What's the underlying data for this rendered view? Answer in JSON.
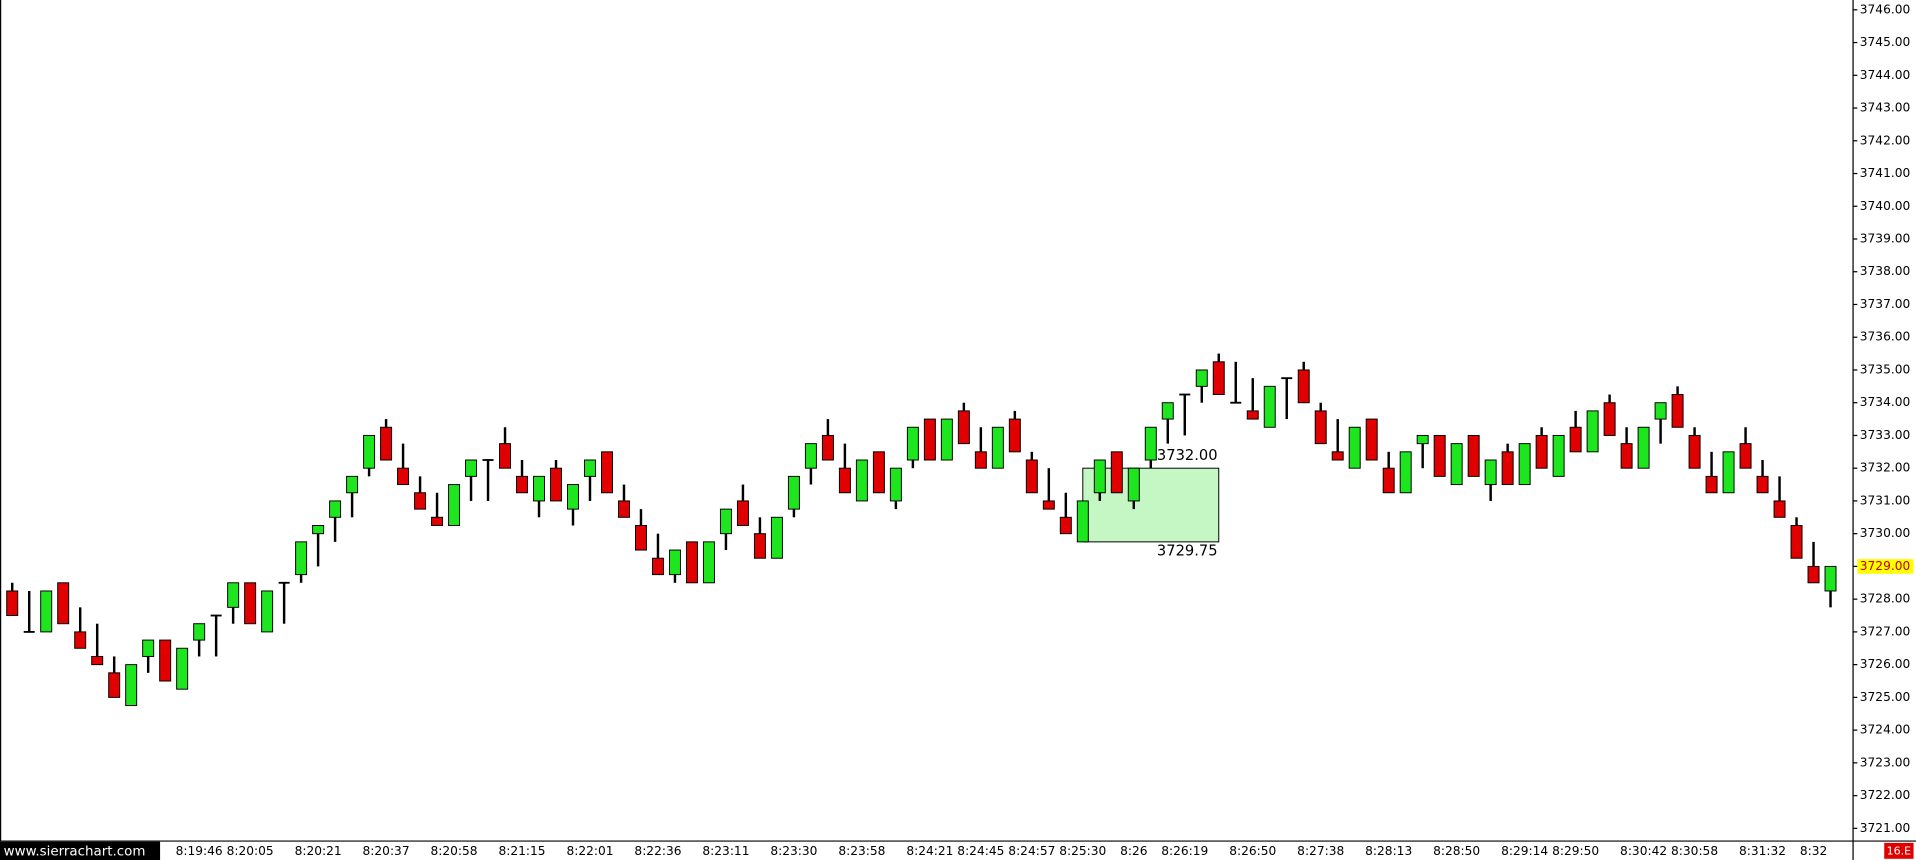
{
  "chart_data": {
    "type": "candlestick",
    "up_color": "#1ee61e",
    "down_color": "#e00000",
    "ylim": [
      3720.63,
      3746.3
    ],
    "yticks": [
      {
        "value": 3721,
        "label": "3721.00"
      },
      {
        "value": 3722,
        "label": "3722.00"
      },
      {
        "value": 3723,
        "label": "3723.00"
      },
      {
        "value": 3724,
        "label": "3724.00"
      },
      {
        "value": 3725,
        "label": "3725.00"
      },
      {
        "value": 3726,
        "label": "3726.00"
      },
      {
        "value": 3727,
        "label": "3727.00"
      },
      {
        "value": 3728,
        "label": "3728.00"
      },
      {
        "value": 3729,
        "label": "3729.00"
      },
      {
        "value": 3730,
        "label": "3730.00"
      },
      {
        "value": 3731,
        "label": "3731.00"
      },
      {
        "value": 3732,
        "label": "3732.00"
      },
      {
        "value": 3733,
        "label": "3733.00"
      },
      {
        "value": 3734,
        "label": "3734.00"
      },
      {
        "value": 3735,
        "label": "3735.00"
      },
      {
        "value": 3736,
        "label": "3736.00"
      },
      {
        "value": 3737,
        "label": "3737.00"
      },
      {
        "value": 3738,
        "label": "3738.00"
      },
      {
        "value": 3739,
        "label": "3739.00"
      },
      {
        "value": 3740,
        "label": "3740.00"
      },
      {
        "value": 3741,
        "label": "3741.00"
      },
      {
        "value": 3742,
        "label": "3742.00"
      },
      {
        "value": 3743,
        "label": "3743.00"
      },
      {
        "value": 3744,
        "label": "3744.00"
      },
      {
        "value": 3745,
        "label": "3745.00"
      },
      {
        "value": 3746,
        "label": "3746.00"
      }
    ],
    "categories": [
      null,
      null,
      null,
      null,
      null,
      null,
      null,
      null,
      null,
      null,
      null,
      "8:19:46",
      null,
      null,
      "8:20:05",
      null,
      null,
      null,
      "8:20:21",
      null,
      null,
      null,
      "8:20:37",
      null,
      null,
      null,
      "8:20:58",
      null,
      null,
      null,
      "8:21:15",
      null,
      null,
      null,
      "8:22:01",
      null,
      null,
      null,
      "8:22:36",
      null,
      null,
      null,
      "8:23:11",
      null,
      null,
      null,
      "8:23:30",
      null,
      null,
      null,
      "8:23:58",
      null,
      null,
      null,
      "8:24:21",
      null,
      null,
      "8:24:45",
      null,
      null,
      "8:24:57",
      null,
      null,
      "8:25:30",
      null,
      null,
      "8:26",
      null,
      null,
      "8:26:19",
      null,
      null,
      null,
      "8:26:50",
      null,
      null,
      null,
      "8:27:38",
      null,
      null,
      null,
      "8:28:13",
      null,
      null,
      null,
      "8:28:50",
      null,
      null,
      null,
      "8:29:14",
      null,
      null,
      "8:29:50",
      null,
      null,
      null,
      "8:30:42",
      null,
      null,
      "8:30:58",
      null,
      null,
      null,
      "8:31:32",
      null,
      null,
      "8:32",
      null
    ],
    "open": [
      3728.25,
      3727.0,
      3727.0,
      3728.5,
      3727.0,
      3726.25,
      3725.75,
      3724.75,
      3726.25,
      3726.75,
      3725.25,
      3726.75,
      3727.5,
      3727.75,
      3728.5,
      3727.0,
      3728.5,
      3728.75,
      3730.0,
      3730.5,
      3731.25,
      3732.0,
      3733.25,
      3732.0,
      3731.25,
      3730.5,
      3730.25,
      3731.75,
      3732.25,
      3732.75,
      3731.75,
      3731.0,
      3732.0,
      3730.75,
      3731.75,
      3732.5,
      3731.0,
      3730.25,
      3729.25,
      3728.75,
      3729.75,
      3728.5,
      3730.0,
      3731.0,
      3730.0,
      3729.25,
      3730.75,
      3732.0,
      3733.0,
      3732.0,
      3731.0,
      3732.5,
      3731.0,
      3732.25,
      3733.5,
      3732.25,
      3733.75,
      3732.5,
      3732.0,
      3733.5,
      3732.25,
      3731.0,
      3730.5,
      3729.75,
      3731.25,
      3732.5,
      3731.0,
      3732.25,
      3733.5,
      3734.25,
      3734.5,
      3735.25,
      3734.0,
      3733.75,
      3733.25,
      3734.75,
      3735.0,
      3733.75,
      3732.5,
      3732.0,
      3733.5,
      3732.0,
      3731.25,
      3732.75,
      3733.0,
      3731.5,
      3733.0,
      3731.5,
      3732.5,
      3731.5,
      3733.0,
      3731.75,
      3733.25,
      3732.5,
      3734.0,
      3732.75,
      3732.0,
      3733.5,
      3734.25,
      3733.0,
      3731.75,
      3731.25,
      3732.75,
      3731.75,
      3731.0,
      3730.25,
      3729.0,
      3728.25
    ],
    "high": [
      3728.5,
      3728.25,
      3728.25,
      3728.5,
      3727.75,
      3727.25,
      3726.25,
      3726.0,
      3726.75,
      3726.75,
      3726.5,
      3727.25,
      3727.5,
      3728.5,
      3728.5,
      3728.25,
      3728.5,
      3729.75,
      3730.25,
      3731.0,
      3731.75,
      3733.0,
      3733.5,
      3732.75,
      3731.75,
      3731.25,
      3731.5,
      3732.25,
      3732.25,
      3733.25,
      3732.25,
      3731.75,
      3732.25,
      3731.5,
      3732.25,
      3732.5,
      3731.5,
      3730.75,
      3730.0,
      3729.5,
      3729.75,
      3729.75,
      3730.75,
      3731.5,
      3730.5,
      3730.5,
      3731.75,
      3732.75,
      3733.5,
      3732.75,
      3732.25,
      3732.5,
      3732.0,
      3733.25,
      3733.5,
      3733.5,
      3734.0,
      3733.25,
      3733.25,
      3733.75,
      3732.5,
      3732.0,
      3731.25,
      3731.0,
      3732.25,
      3732.5,
      3732.0,
      3733.25,
      3734.0,
      3734.25,
      3735.0,
      3735.5,
      3735.25,
      3734.75,
      3734.5,
      3734.75,
      3735.25,
      3734.0,
      3733.5,
      3733.25,
      3733.5,
      3732.5,
      3732.5,
      3733.0,
      3733.0,
      3732.75,
      3733.0,
      3732.25,
      3732.75,
      3732.75,
      3733.25,
      3733.0,
      3733.75,
      3733.75,
      3734.25,
      3733.25,
      3733.25,
      3734.0,
      3734.5,
      3733.25,
      3732.5,
      3732.5,
      3733.25,
      3732.25,
      3731.75,
      3730.5,
      3729.75,
      3729.0
    ],
    "low": [
      3727.5,
      3727.0,
      3727.0,
      3727.25,
      3726.5,
      3726.0,
      3725.0,
      3724.75,
      3725.75,
      3725.5,
      3725.25,
      3726.25,
      3726.25,
      3727.25,
      3727.25,
      3727.0,
      3727.25,
      3728.5,
      3729.0,
      3729.75,
      3730.5,
      3731.75,
      3732.25,
      3731.5,
      3730.75,
      3730.25,
      3730.25,
      3731.0,
      3731.0,
      3732.0,
      3731.25,
      3730.5,
      3731.0,
      3730.25,
      3731.0,
      3731.25,
      3730.5,
      3729.5,
      3728.75,
      3728.5,
      3728.5,
      3728.5,
      3729.5,
      3730.25,
      3729.25,
      3729.25,
      3730.5,
      3731.5,
      3732.25,
      3731.25,
      3731.0,
      3731.25,
      3730.75,
      3732.0,
      3732.25,
      3732.25,
      3732.75,
      3732.0,
      3732.0,
      3732.5,
      3731.25,
      3730.75,
      3730.0,
      3729.75,
      3731.0,
      3731.25,
      3730.75,
      3732.0,
      3732.75,
      3733.0,
      3734.0,
      3734.25,
      3734.0,
      3733.5,
      3733.25,
      3733.5,
      3734.0,
      3732.75,
      3732.25,
      3732.0,
      3732.25,
      3731.25,
      3731.25,
      3732.0,
      3731.75,
      3731.5,
      3731.75,
      3731.0,
      3731.5,
      3731.5,
      3732.0,
      3731.75,
      3732.5,
      3732.5,
      3733.0,
      3732.0,
      3732.0,
      3732.75,
      3733.25,
      3732.0,
      3731.25,
      3731.25,
      3732.0,
      3731.25,
      3730.5,
      3729.25,
      3728.5,
      3727.75
    ],
    "close": [
      3727.5,
      3727.0,
      3728.25,
      3727.25,
      3726.5,
      3726.0,
      3725.0,
      3726.0,
      3726.75,
      3725.5,
      3726.5,
      3727.25,
      3727.5,
      3728.5,
      3727.25,
      3728.25,
      3728.5,
      3729.75,
      3730.25,
      3731.0,
      3731.75,
      3733.0,
      3732.25,
      3731.5,
      3730.75,
      3730.25,
      3731.5,
      3732.25,
      3732.25,
      3732.0,
      3731.25,
      3731.75,
      3731.0,
      3731.5,
      3732.25,
      3731.25,
      3730.5,
      3729.5,
      3728.75,
      3729.5,
      3728.5,
      3729.75,
      3730.75,
      3730.25,
      3729.25,
      3730.5,
      3731.75,
      3732.75,
      3732.25,
      3731.25,
      3732.25,
      3731.25,
      3732.0,
      3733.25,
      3732.25,
      3733.5,
      3732.75,
      3732.0,
      3733.25,
      3732.5,
      3731.25,
      3730.75,
      3730.0,
      3731.0,
      3732.25,
      3731.25,
      3732.0,
      3733.25,
      3734.0,
      3734.25,
      3735.0,
      3734.25,
      3734.0,
      3733.5,
      3734.5,
      3734.75,
      3734.0,
      3732.75,
      3732.25,
      3733.25,
      3732.25,
      3731.25,
      3732.5,
      3733.0,
      3731.75,
      3732.75,
      3731.75,
      3732.25,
      3731.5,
      3732.75,
      3732.0,
      3733.0,
      3732.5,
      3733.75,
      3733.0,
      3732.0,
      3733.25,
      3734.0,
      3733.25,
      3732.0,
      3731.25,
      3732.5,
      3732.0,
      3731.25,
      3730.5,
      3729.25,
      3728.5,
      3729.0
    ],
    "zone": {
      "color": "#c4f7c4",
      "top": {
        "value": 3732,
        "label": "3732.00"
      },
      "bottom": {
        "value": 3729.75,
        "label": "3729.75"
      }
    },
    "last_price": {
      "value": 3729,
      "label": "3729.00",
      "color": "#ffff00"
    },
    "site_label": "www.sierrachart.com",
    "corner_label": "16.E"
  }
}
